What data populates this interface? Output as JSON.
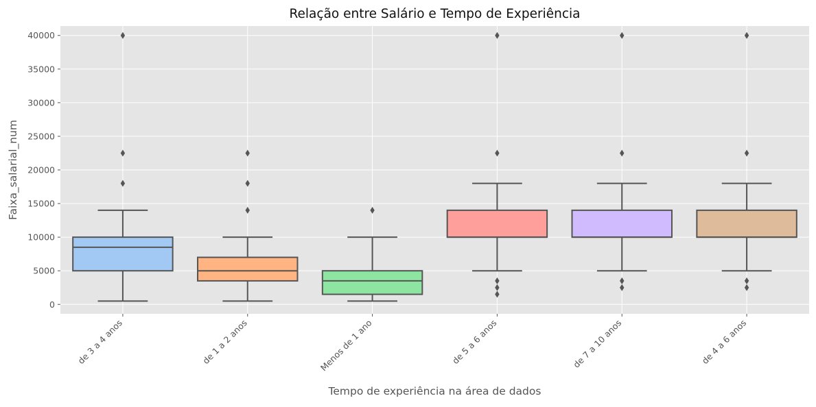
{
  "chart_data": {
    "type": "box",
    "title": "Relação entre Salário e Tempo de Experiência",
    "xlabel": "Tempo de experiência na área de dados",
    "ylabel": "Faixa_salarial_num",
    "ylim": [
      -1400,
      41400
    ],
    "yticks": [
      0,
      5000,
      10000,
      15000,
      20000,
      25000,
      30000,
      35000,
      40000
    ],
    "grid": true,
    "categories": [
      "de 3 a 4 anos",
      "de 1 a 2 anos",
      "Menos de 1 ano",
      "de 5 a 6 anos",
      "de 7 a 10 anos",
      "de 4 a 6 anos"
    ],
    "boxes": [
      {
        "category": "de 3 a 4 anos",
        "whisker_low": 500,
        "q1": 5000,
        "median": 8500,
        "q3": 10000,
        "whisker_high": 14000,
        "outliers": [
          18000,
          22500,
          40000
        ],
        "color": "#a1c9f4"
      },
      {
        "category": "de 1 a 2 anos",
        "whisker_low": 500,
        "q1": 3500,
        "median": 5000,
        "q3": 7000,
        "whisker_high": 10000,
        "outliers": [
          14000,
          18000,
          22500
        ],
        "color": "#ffb482"
      },
      {
        "category": "Menos de 1 ano",
        "whisker_low": 500,
        "q1": 1500,
        "median": 3500,
        "q3": 5000,
        "whisker_high": 10000,
        "outliers": [
          14000
        ],
        "color": "#8de5a1"
      },
      {
        "category": "de 5 a 6 anos",
        "whisker_low": 5000,
        "q1": 10000,
        "median": 10000,
        "q3": 14000,
        "whisker_high": 18000,
        "outliers": [
          1500,
          2500,
          3500,
          22500,
          40000
        ],
        "color": "#ff9f9b"
      },
      {
        "category": "de 7 a 10 anos",
        "whisker_low": 5000,
        "q1": 10000,
        "median": 10000,
        "q3": 14000,
        "whisker_high": 18000,
        "outliers": [
          2500,
          3500,
          22500,
          40000
        ],
        "color": "#d0bbff"
      },
      {
        "category": "de 4 a 6 anos",
        "whisker_low": 5000,
        "q1": 10000,
        "median": 10000,
        "q3": 14000,
        "whisker_high": 18000,
        "outliers": [
          2500,
          3500,
          22500,
          40000
        ],
        "color": "#debb9b"
      }
    ],
    "colors": {
      "background": "#e5e5e5",
      "grid": "#ffffff",
      "line": "#555555",
      "outlier": "#555555",
      "text": "#555555"
    }
  }
}
